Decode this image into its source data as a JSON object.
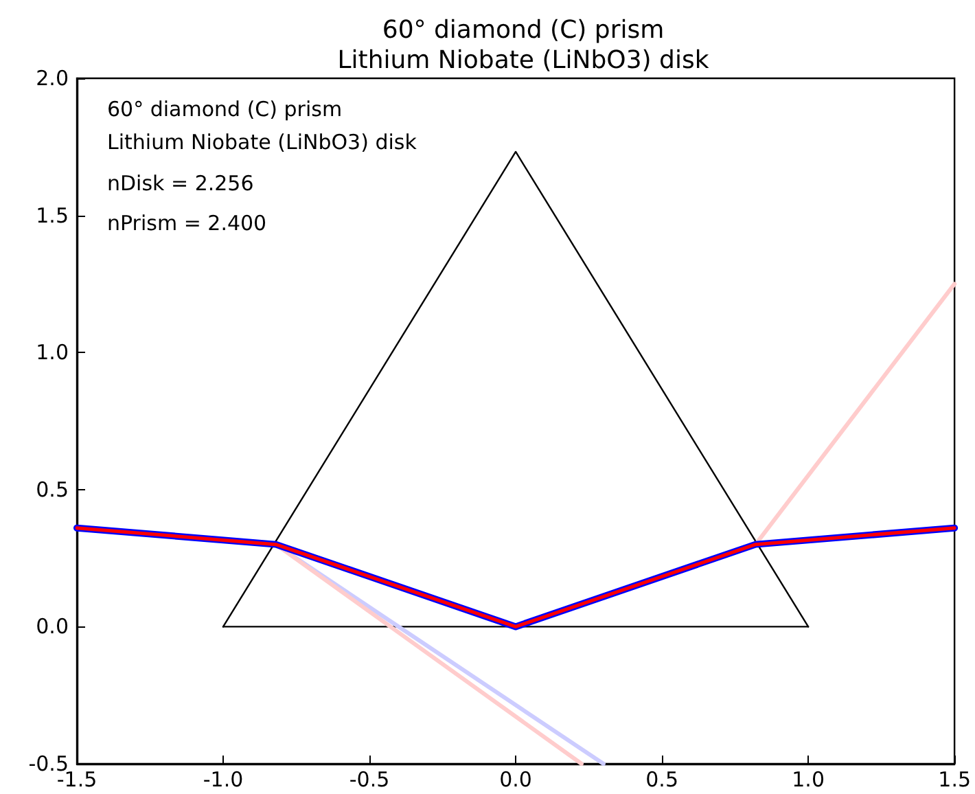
{
  "chart_data": {
    "type": "line",
    "title": "60° diamond (C) prism\nLithium Niobate (LiNbO3) disk",
    "annotations": [
      "60° diamond (C) prism",
      "Lithium Niobate (LiNbO3) disk",
      "nDisk = 2.256",
      "nPrism = 2.400"
    ],
    "series": [
      {
        "color": "#000000",
        "x": [
          -1,
          0,
          1
        ],
        "values": [
          0,
          1.732,
          0
        ]
      },
      {
        "color": "#000000",
        "x": [
          -1,
          1
        ],
        "values": [
          0,
          0
        ]
      },
      {
        "color": "#ccccff",
        "x": [
          -0.82,
          0.3
        ],
        "values": [
          0.3,
          -0.5
        ]
      },
      {
        "color": "#ffcccc",
        "x": [
          -0.82,
          0.225
        ],
        "values": [
          0.3,
          -0.5
        ]
      },
      {
        "color": "#ffcccc",
        "x": [
          0.82,
          1.5
        ],
        "values": [
          0.3,
          1.25
        ]
      },
      {
        "color": "#0000ff",
        "x": [
          -1.5,
          -0.82,
          0,
          0.82,
          1.5
        ],
        "values": [
          0.36,
          0.3,
          0,
          0.3,
          0.36
        ]
      },
      {
        "color": "#ff0000",
        "x": [
          -1.5,
          -0.82,
          0,
          0.82,
          1.5
        ],
        "values": [
          0.36,
          0.3,
          0,
          0.3,
          0.36
        ]
      }
    ],
    "xlim": [
      -1.5,
      1.5
    ],
    "xticks": [
      -1.5,
      {
        "value": -1,
        "label": "-1.0"
      },
      -0.5,
      {
        "value": 0,
        "label": "0.0"
      },
      0.5,
      {
        "value": 1,
        "label": "1.0"
      },
      1.5
    ],
    "ylim": [
      -0.5,
      2.0
    ],
    "yticks": [
      -0.5,
      {
        "value": 0,
        "label": "0.0"
      },
      0.5,
      {
        "value": 1,
        "label": "1.0"
      },
      1.5,
      {
        "value": 2,
        "label": "2.0"
      }
    ],
    "grid": false,
    "marker": "none",
    "line_style": "solid"
  }
}
